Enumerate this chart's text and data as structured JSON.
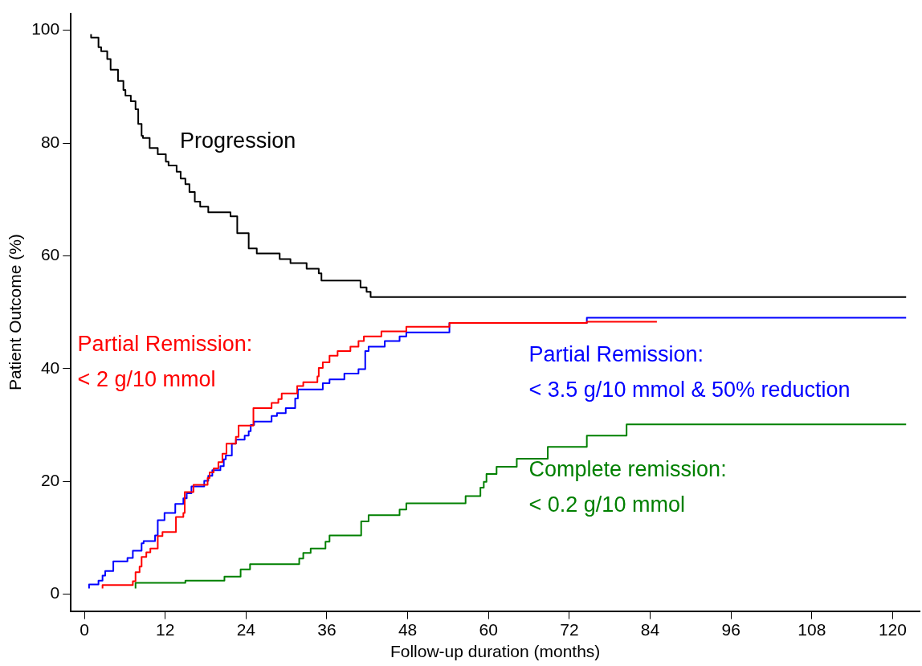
{
  "chart_data": {
    "type": "step",
    "xlabel": "Follow-up duration (months)",
    "ylabel": "Patient Outcome (%)",
    "xlim": [
      -2,
      124
    ],
    "ylim": [
      -3,
      103
    ],
    "xticks": [
      0,
      12,
      24,
      36,
      48,
      60,
      72,
      84,
      96,
      108,
      120
    ],
    "yticks": [
      0,
      20,
      40,
      60,
      80,
      100
    ],
    "grid": false,
    "legend": false,
    "marker": "none",
    "line_style": "solid",
    "series": [
      {
        "name": "Progression",
        "color": "#000000",
        "x": [
          1.0,
          2.1,
          2.5,
          3.4,
          3.9,
          5.0,
          5.8,
          6.1,
          6.9,
          7.6,
          8.0,
          8.5,
          8.7,
          9.7,
          10.9,
          12.1,
          12.5,
          13.7,
          14.3,
          15.0,
          15.6,
          16.4,
          17.2,
          18.4,
          21.7,
          22.7,
          24.4,
          25.6,
          29.0,
          30.6,
          33.0,
          34.8,
          35.2,
          41.0,
          41.9,
          42.5,
          52.3,
          122
        ],
        "values": [
          99.3,
          98.7,
          97,
          96.3,
          94.9,
          93,
          91,
          89.4,
          88.4,
          87.4,
          86,
          83.4,
          81.3,
          80.9,
          79.1,
          78,
          76.7,
          76,
          74.9,
          73.7,
          72.7,
          71.3,
          69.6,
          68.7,
          67.7,
          67,
          64,
          61.3,
          60.4,
          59.4,
          58.7,
          57.7,
          56.9,
          55.6,
          54.4,
          53.6,
          52.7,
          52.7
        ]
      },
      {
        "name": "Partial Remission:\n< 2 g/10 mmol",
        "color": "#ff0000",
        "x": [
          2.7,
          7.2,
          7.6,
          8.2,
          8.5,
          9.2,
          9.8,
          10.9,
          11.6,
          13.6,
          14.7,
          14.9,
          16.2,
          18.3,
          18.6,
          19.2,
          19.9,
          20.5,
          21.1,
          22.5,
          22.9,
          25.1,
          27.8,
          28.8,
          29.3,
          31.6,
          32.5,
          34.6,
          34.8,
          35.4,
          36.4,
          37.6,
          39.5,
          40.7,
          41.5,
          44.1,
          47.8,
          54.2,
          74.6,
          79.5,
          85
        ],
        "values": [
          1.0,
          1.6,
          2.3,
          3.9,
          4.9,
          6.6,
          7.4,
          8.1,
          10.3,
          11,
          13.7,
          14.4,
          18.1,
          19.4,
          20.6,
          21.6,
          22.3,
          23.4,
          24.9,
          26.7,
          27.9,
          29.9,
          33,
          33.9,
          34.6,
          35.6,
          36.9,
          37.6,
          38.6,
          40.1,
          41.1,
          42.3,
          43.1,
          43.9,
          44.9,
          45.7,
          46.6,
          47.4,
          48.1,
          48.3,
          48.3
        ]
      },
      {
        "name": "Partial Remission:\n< 3.5 g/10 mmol & 50% reduction",
        "color": "#0000ff",
        "x": [
          0.7,
          2.1,
          2.7,
          3.1,
          4.3,
          6.4,
          7.2,
          8.5,
          8.8,
          10.5,
          10.9,
          11.9,
          13.5,
          14.7,
          15.2,
          15.9,
          17.8,
          18.4,
          19.0,
          20.2,
          20.7,
          21.0,
          21.9,
          22.5,
          23.8,
          24.4,
          24.7,
          25.2,
          27.8,
          28.6,
          29.9,
          31.3,
          31.7,
          35.4,
          36.4,
          38.6,
          40.7,
          41.7,
          42.2,
          44.6,
          46.8,
          47.8,
          54.2,
          74.6,
          79.5,
          122
        ],
        "values": [
          1.0,
          1.7,
          2.4,
          3.3,
          4.1,
          5.8,
          6.4,
          7.7,
          9,
          9.4,
          10.4,
          13.1,
          14.4,
          16,
          17,
          17.9,
          19.1,
          20.1,
          21,
          22,
          22.7,
          23.9,
          24.6,
          26.7,
          27.4,
          28.1,
          28.9,
          30,
          30.6,
          31.6,
          32.1,
          33,
          34.7,
          36.3,
          37.4,
          38.1,
          39.1,
          39.9,
          43.1,
          43.9,
          44.9,
          45.7,
          46.4,
          48.1,
          49,
          49
        ]
      },
      {
        "name": "Complete remission:\n< 0.2 g/10 mmol",
        "color": "#008000",
        "x": [
          7.6,
          15.0,
          20.8,
          23.2,
          24.6,
          31.9,
          32.5,
          33.6,
          35.8,
          36.4,
          41.1,
          42.2,
          46.8,
          47.8,
          56.6,
          58.8,
          59.3,
          59.7,
          61.2,
          64.2,
          68.8,
          74.6,
          80.5,
          82.8,
          122
        ],
        "values": [
          1.0,
          2,
          2.4,
          3.1,
          4.4,
          5.3,
          6.3,
          7.3,
          8.1,
          9.3,
          10.4,
          12.9,
          14,
          15,
          16.1,
          17.4,
          18.9,
          19.9,
          21.3,
          22.6,
          24,
          26.1,
          28.1,
          30.1,
          30.1
        ]
      }
    ]
  }
}
